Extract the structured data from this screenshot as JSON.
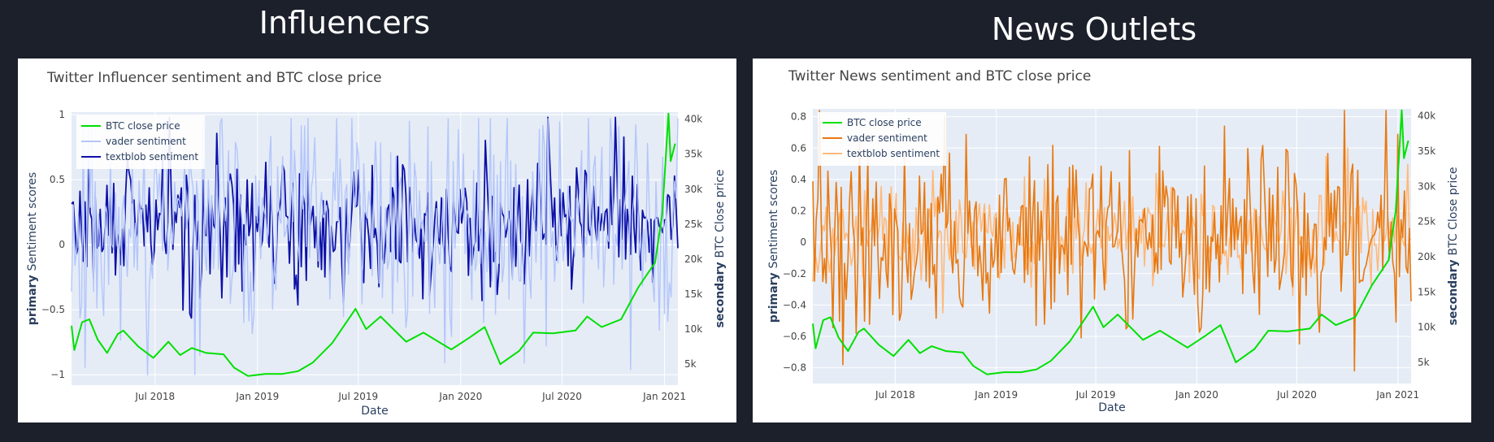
{
  "headings": {
    "left": "Influencers",
    "right": "News Outlets"
  },
  "chart_data": [
    {
      "type": "line",
      "title": "Twitter Influencer sentiment and BTC close price",
      "xlabel": "Date",
      "ylabel_bold": "primary",
      "ylabel": "Sentiment scores",
      "y2label_bold": "secondary",
      "y2label": "BTC Close price",
      "x_ticks": [
        "Jul 2018",
        "Jan 2019",
        "Jul 2019",
        "Jan 2020",
        "Jul 2020",
        "Jan 2021"
      ],
      "x_range": [
        "2018-02-01",
        "2021-01-25"
      ],
      "y_ticks": [
        "1",
        "0.5",
        "0",
        "−0.5",
        "−1"
      ],
      "y_tick_values": [
        1,
        0.5,
        0,
        -0.5,
        -1
      ],
      "y_range": [
        -1.08,
        1.02
      ],
      "y2_ticks": [
        "40k",
        "35k",
        "30k",
        "25k",
        "20k",
        "15k",
        "10k",
        "5k"
      ],
      "y2_tick_values": [
        40000,
        35000,
        30000,
        25000,
        20000,
        15000,
        10000,
        5000
      ],
      "y2_range": [
        2000,
        41000
      ],
      "legend_position": "top-left",
      "series": [
        {
          "name": "BTC close price",
          "axis": "secondary",
          "color": "#00e000",
          "points": [
            [
              "2018-02-01",
              10500
            ],
            [
              "2018-02-06",
              7000
            ],
            [
              "2018-02-20",
              11000
            ],
            [
              "2018-03-05",
              11400
            ],
            [
              "2018-03-20",
              8500
            ],
            [
              "2018-04-06",
              6600
            ],
            [
              "2018-04-25",
              9300
            ],
            [
              "2018-05-05",
              9800
            ],
            [
              "2018-06-01",
              7500
            ],
            [
              "2018-06-28",
              5900
            ],
            [
              "2018-07-25",
              8200
            ],
            [
              "2018-08-15",
              6300
            ],
            [
              "2018-09-05",
              7300
            ],
            [
              "2018-10-01",
              6600
            ],
            [
              "2018-11-01",
              6400
            ],
            [
              "2018-11-20",
              4500
            ],
            [
              "2018-12-15",
              3300
            ],
            [
              "2019-01-15",
              3600
            ],
            [
              "2019-02-15",
              3600
            ],
            [
              "2019-03-15",
              4000
            ],
            [
              "2019-04-10",
              5200
            ],
            [
              "2019-05-15",
              8000
            ],
            [
              "2019-06-26",
              12900
            ],
            [
              "2019-07-15",
              10000
            ],
            [
              "2019-08-10",
              11800
            ],
            [
              "2019-09-25",
              8200
            ],
            [
              "2019-10-26",
              9500
            ],
            [
              "2019-12-15",
              7100
            ],
            [
              "2020-01-15",
              8700
            ],
            [
              "2020-02-13",
              10300
            ],
            [
              "2020-03-12",
              5000
            ],
            [
              "2020-04-15",
              6900
            ],
            [
              "2020-05-10",
              9500
            ],
            [
              "2020-06-15",
              9400
            ],
            [
              "2020-07-25",
              9800
            ],
            [
              "2020-08-15",
              11800
            ],
            [
              "2020-09-10",
              10300
            ],
            [
              "2020-10-15",
              11400
            ],
            [
              "2020-11-15",
              16000
            ],
            [
              "2020-12-15",
              19500
            ],
            [
              "2020-12-28",
              26500
            ],
            [
              "2021-01-08",
              40800
            ],
            [
              "2021-01-12",
              34000
            ],
            [
              "2021-01-20",
              36500
            ]
          ]
        },
        {
          "name": "vader sentiment",
          "axis": "primary",
          "color": "#b4c6fa",
          "line_width": 1.4,
          "generator": "noise",
          "seed": 11,
          "base": 0.18,
          "spread": 0.95,
          "min": -1.0,
          "max": 0.97
        },
        {
          "name": "textblob sentiment",
          "axis": "primary",
          "color": "#0d10a8",
          "line_width": 1.8,
          "generator": "noise",
          "seed": 29,
          "base": 0.15,
          "spread": 0.55,
          "min": -0.58,
          "max": 0.98
        }
      ]
    },
    {
      "type": "line",
      "title": "Twitter News sentiment and BTC close price",
      "xlabel": "Date",
      "ylabel_bold": "primary",
      "ylabel": "Sentiment scores",
      "y2label_bold": "secondary",
      "y2label": "BTC Close price",
      "x_ticks": [
        "Jul 2018",
        "Jan 2019",
        "Jul 2019",
        "Jan 2020",
        "Jul 2020",
        "Jan 2021"
      ],
      "x_range": [
        "2018-02-01",
        "2021-01-25"
      ],
      "y_ticks": [
        "0.8",
        "0.6",
        "0.4",
        "0.2",
        "0",
        "−0.2",
        "−0.4",
        "−0.6",
        "−0.8"
      ],
      "y_tick_values": [
        0.8,
        0.6,
        0.4,
        0.2,
        0,
        -0.2,
        -0.4,
        -0.6,
        -0.8
      ],
      "y_range": [
        -0.9,
        0.85
      ],
      "y2_ticks": [
        "40k",
        "35k",
        "30k",
        "25k",
        "20k",
        "15k",
        "10k",
        "5k"
      ],
      "y2_tick_values": [
        40000,
        35000,
        30000,
        25000,
        20000,
        15000,
        10000,
        5000
      ],
      "y2_range": [
        2000,
        41000
      ],
      "legend_position": "top-left",
      "series": [
        {
          "name": "BTC close price",
          "axis": "secondary",
          "color": "#00e000",
          "points": [
            [
              "2018-02-01",
              10500
            ],
            [
              "2018-02-06",
              7000
            ],
            [
              "2018-02-20",
              11000
            ],
            [
              "2018-03-05",
              11400
            ],
            [
              "2018-03-20",
              8500
            ],
            [
              "2018-04-06",
              6600
            ],
            [
              "2018-04-25",
              9300
            ],
            [
              "2018-05-05",
              9800
            ],
            [
              "2018-06-01",
              7500
            ],
            [
              "2018-06-28",
              5900
            ],
            [
              "2018-07-25",
              8200
            ],
            [
              "2018-08-15",
              6300
            ],
            [
              "2018-09-05",
              7300
            ],
            [
              "2018-10-01",
              6600
            ],
            [
              "2018-11-01",
              6400
            ],
            [
              "2018-11-20",
              4500
            ],
            [
              "2018-12-15",
              3300
            ],
            [
              "2019-01-15",
              3600
            ],
            [
              "2019-02-15",
              3600
            ],
            [
              "2019-03-15",
              4000
            ],
            [
              "2019-04-10",
              5200
            ],
            [
              "2019-05-15",
              8000
            ],
            [
              "2019-06-26",
              12900
            ],
            [
              "2019-07-15",
              10000
            ],
            [
              "2019-08-10",
              11800
            ],
            [
              "2019-09-25",
              8200
            ],
            [
              "2019-10-26",
              9500
            ],
            [
              "2019-12-15",
              7100
            ],
            [
              "2020-01-15",
              8700
            ],
            [
              "2020-02-13",
              10300
            ],
            [
              "2020-03-12",
              5000
            ],
            [
              "2020-04-15",
              6900
            ],
            [
              "2020-05-10",
              9500
            ],
            [
              "2020-06-15",
              9400
            ],
            [
              "2020-07-25",
              9800
            ],
            [
              "2020-08-15",
              11800
            ],
            [
              "2020-09-10",
              10300
            ],
            [
              "2020-10-15",
              11400
            ],
            [
              "2020-11-15",
              16000
            ],
            [
              "2020-12-15",
              19500
            ],
            [
              "2020-12-28",
              26500
            ],
            [
              "2021-01-08",
              40800
            ],
            [
              "2021-01-12",
              34000
            ],
            [
              "2021-01-20",
              36500
            ]
          ]
        },
        {
          "name": "vader sentiment",
          "axis": "primary",
          "color": "#e8780f",
          "line_width": 1.6,
          "generator": "noise",
          "seed": 41,
          "base": 0.03,
          "spread": 0.62,
          "min": -0.82,
          "max": 0.84
        },
        {
          "name": "textblob sentiment",
          "axis": "primary",
          "color": "#ffb97a",
          "line_width": 1.6,
          "generator": "noise",
          "seed": 53,
          "base": 0.05,
          "spread": 0.32,
          "min": -0.45,
          "max": 0.6
        }
      ]
    }
  ]
}
